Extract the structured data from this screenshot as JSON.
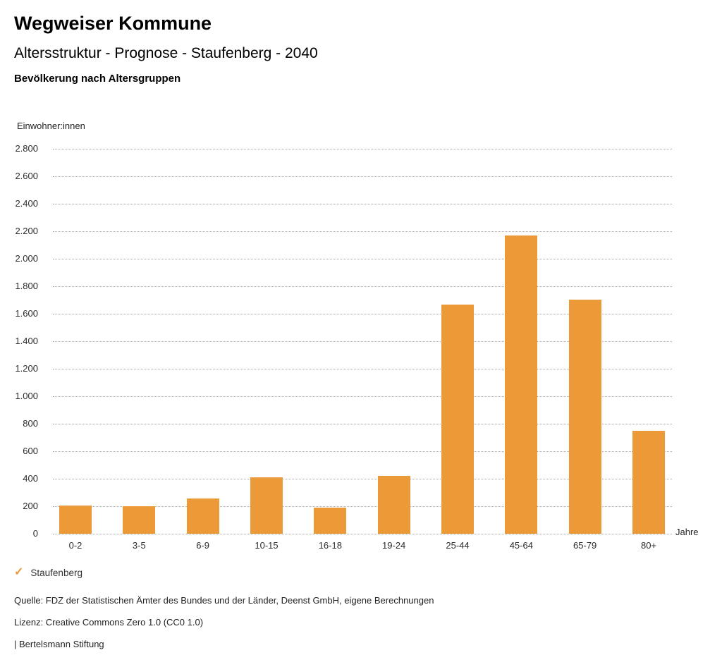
{
  "header": {
    "title": "Wegweiser Kommune",
    "subtitle": "Altersstruktur - Prognose - Staufenberg - 2040",
    "chart_heading": "Bevölkerung nach Altersgruppen"
  },
  "chart_data": {
    "type": "bar",
    "title": "Bevölkerung nach Altersgruppen",
    "series_name": "Staufenberg",
    "ylabel": "Einwohner:innen",
    "xlabel": "Jahre",
    "categories": [
      "0-2",
      "3-5",
      "6-9",
      "10-15",
      "16-18",
      "19-24",
      "25-44",
      "45-64",
      "65-79",
      "80+"
    ],
    "values": [
      205,
      200,
      255,
      410,
      190,
      420,
      1665,
      2170,
      1705,
      750
    ],
    "ylim": [
      0,
      2800
    ],
    "ytick_step": 200,
    "ytick_labels": [
      "0",
      "200",
      "400",
      "600",
      "800",
      "1.000",
      "1.200",
      "1.400",
      "1.600",
      "1.800",
      "2.000",
      "2.200",
      "2.400",
      "2.600",
      "2.800"
    ],
    "grid": "horizontal-dotted",
    "legend_position": "bottom-left",
    "bar_color": "#EC9A38"
  },
  "legend": {
    "check_icon": "✓",
    "check_color": "#EC9A38",
    "label": "Staufenberg"
  },
  "footer": {
    "source": "Quelle: FDZ der Statistischen Ämter des Bundes und der Länder, Deenst GmbH, eigene Berechnungen",
    "license": "Lizenz: Creative Commons Zero 1.0 (CC0 1.0)",
    "attribution": "| Bertelsmann Stiftung"
  }
}
